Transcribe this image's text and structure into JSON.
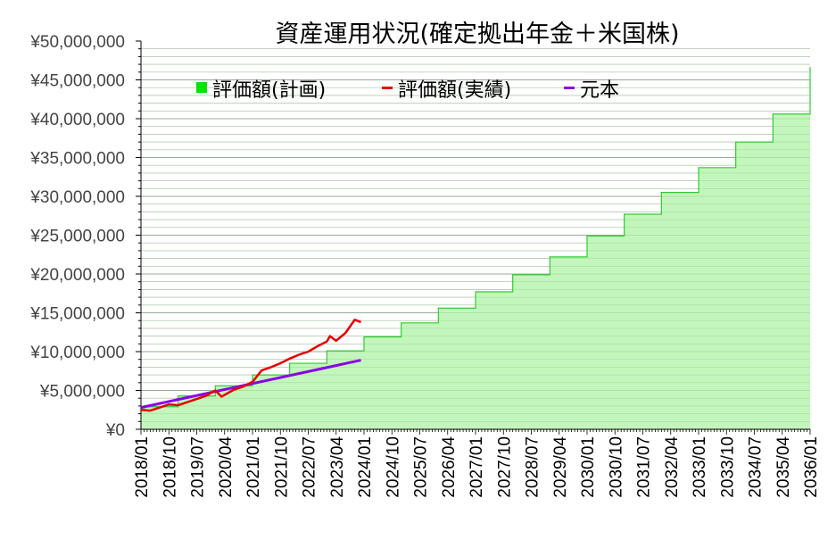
{
  "chart_data": {
    "type": "area",
    "title": "資産運用状況(確定拠出年金＋米国株)",
    "y_tick_labels": [
      "¥0",
      "¥5,000,000",
      "¥10,000,000",
      "¥15,000,000",
      "¥20,000,000",
      "¥25,000,000",
      "¥30,000,000",
      "¥35,000,000",
      "¥40,000,000",
      "¥45,000,000",
      "¥50,000,000"
    ],
    "x_tick_labels": [
      "2018/01",
      "2018/10",
      "2019/07",
      "2020/04",
      "2021/01",
      "2021/10",
      "2022/07",
      "2023/04",
      "2024/01",
      "2024/10",
      "2025/07",
      "2026/04",
      "2027/01",
      "2027/10",
      "2028/07",
      "2029/04",
      "2030/01",
      "2030/10",
      "2031/07",
      "2032/04",
      "2033/01",
      "2033/10",
      "2034/07",
      "2035/04",
      "2036/01"
    ],
    "ylim": [
      0,
      50000000
    ],
    "xlim": [
      "2018/01",
      "2036/01"
    ],
    "grid": true,
    "legend_position": "top",
    "colors": {
      "plan_fill": "#b8f5b0",
      "plan_line": "#33cc33",
      "actual": "#e60000",
      "principal": "#8a00e6",
      "grid": "#b0b0b0"
    },
    "series": [
      {
        "name": "評価額(計画)",
        "kind": "step-area",
        "points": [
          [
            "2018/01",
            2900000
          ],
          [
            "2019/01",
            4300000
          ],
          [
            "2020/01",
            5600000
          ],
          [
            "2021/01",
            7000000
          ],
          [
            "2022/01",
            8500000
          ],
          [
            "2023/01",
            10100000
          ],
          [
            "2024/01",
            11900000
          ],
          [
            "2025/01",
            13700000
          ],
          [
            "2026/01",
            15600000
          ],
          [
            "2027/01",
            17700000
          ],
          [
            "2028/01",
            19900000
          ],
          [
            "2029/01",
            22200000
          ],
          [
            "2030/01",
            24900000
          ],
          [
            "2031/01",
            27700000
          ],
          [
            "2032/01",
            30500000
          ],
          [
            "2033/01",
            33700000
          ],
          [
            "2034/01",
            37000000
          ],
          [
            "2035/01",
            40600000
          ],
          [
            "2036/01",
            46600000
          ]
        ]
      },
      {
        "name": "評価額(実績)",
        "kind": "line",
        "points": [
          [
            "2018/01",
            2500000
          ],
          [
            "2018/04",
            2400000
          ],
          [
            "2018/07",
            2800000
          ],
          [
            "2018/10",
            3200000
          ],
          [
            "2019/01",
            3100000
          ],
          [
            "2019/04",
            3500000
          ],
          [
            "2019/07",
            3900000
          ],
          [
            "2019/10",
            4300000
          ],
          [
            "2020/01",
            5000000
          ],
          [
            "2020/03",
            4200000
          ],
          [
            "2020/07",
            5100000
          ],
          [
            "2020/10",
            5500000
          ],
          [
            "2021/01",
            6100000
          ],
          [
            "2021/04",
            7600000
          ],
          [
            "2021/07",
            8000000
          ],
          [
            "2021/10",
            8500000
          ],
          [
            "2022/01",
            9100000
          ],
          [
            "2022/04",
            9600000
          ],
          [
            "2022/07",
            10000000
          ],
          [
            "2022/10",
            10700000
          ],
          [
            "2023/01",
            11300000
          ],
          [
            "2023/02",
            12000000
          ],
          [
            "2023/04",
            11400000
          ],
          [
            "2023/07",
            12400000
          ],
          [
            "2023/10",
            14100000
          ],
          [
            "2023/12",
            13800000
          ]
        ]
      },
      {
        "name": "元本",
        "kind": "line",
        "points": [
          [
            "2018/01",
            2800000
          ],
          [
            "2023/12",
            8900000
          ]
        ]
      }
    ]
  }
}
